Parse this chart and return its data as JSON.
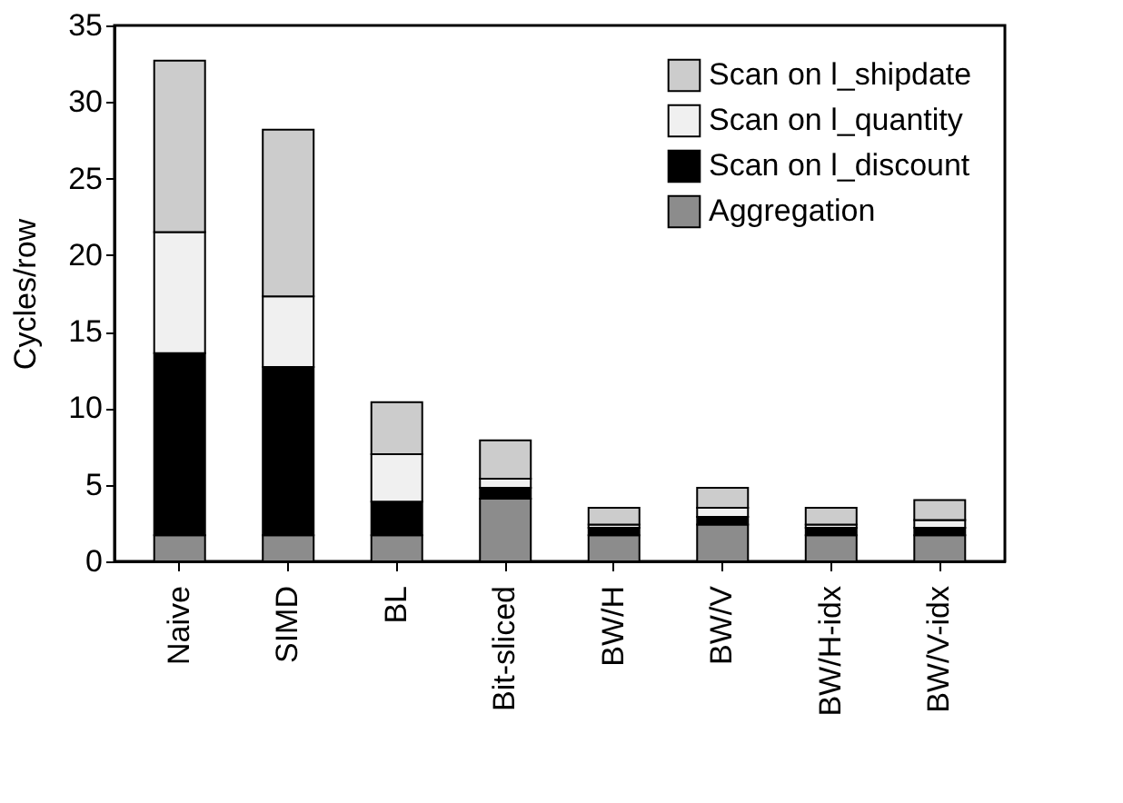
{
  "chart_data": {
    "type": "bar",
    "stacked": true,
    "ylabel": "Cycles/row",
    "categories": [
      "Naive",
      "SIMD",
      "BL",
      "Bit-sliced",
      "BW/H",
      "BW/V",
      "BW/H-idx",
      "BW/V-idx"
    ],
    "series": [
      {
        "name": "Aggregation",
        "color": "#8c8c8c",
        "values": [
          1.7,
          1.7,
          1.7,
          4.1,
          1.7,
          2.4,
          1.7,
          1.7
        ]
      },
      {
        "name": "Scan on l_discount",
        "color": "#000000",
        "values": [
          11.9,
          11.0,
          2.2,
          0.7,
          0.5,
          0.5,
          0.5,
          0.5
        ]
      },
      {
        "name": "Scan on l_quantity",
        "color": "#f0f0f0",
        "values": [
          7.9,
          4.6,
          3.1,
          0.6,
          0.2,
          0.6,
          0.2,
          0.5
        ]
      },
      {
        "name": "Scan on l_shipdate",
        "color": "#cccccc",
        "values": [
          11.2,
          10.9,
          3.4,
          2.5,
          1.1,
          1.3,
          1.1,
          1.3
        ]
      }
    ],
    "ylim": [
      0,
      35
    ],
    "yticks": [
      0,
      5,
      10,
      15,
      20,
      25,
      30,
      35
    ],
    "grid": false,
    "legend": "top right"
  }
}
